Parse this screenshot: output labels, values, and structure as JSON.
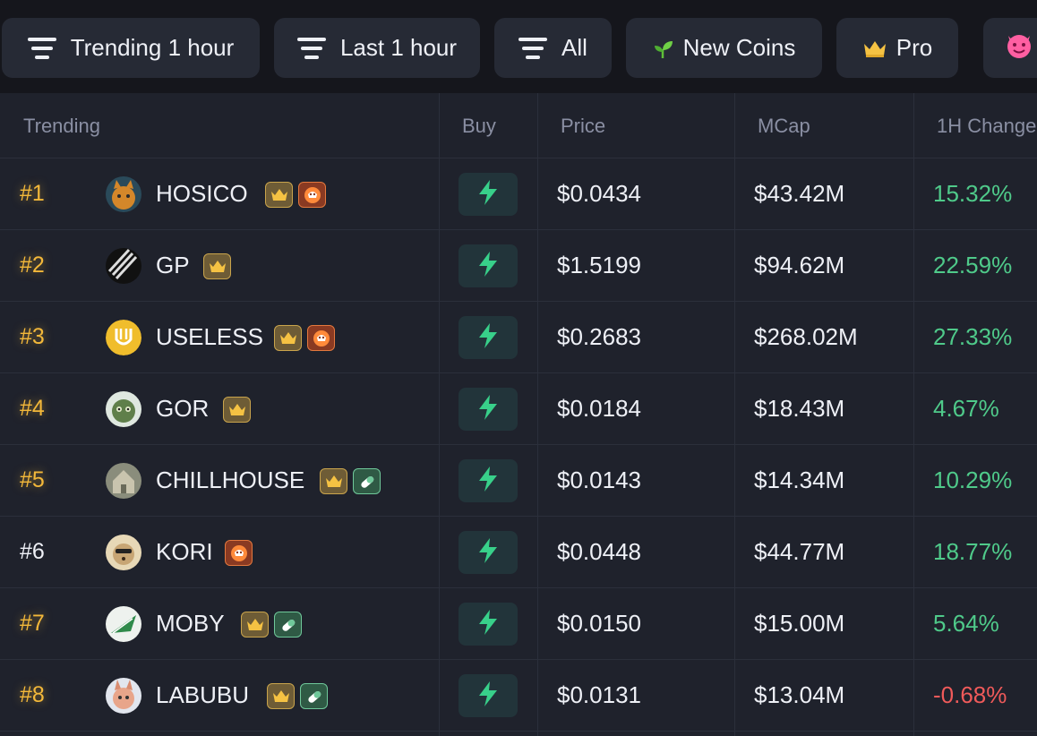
{
  "filters": {
    "trending_label": "Trending 1 hour",
    "time_label": "Last 1 hour",
    "all_label": "All",
    "new_coins_label": "New Coins",
    "pro_label": "Pro"
  },
  "table": {
    "headers": {
      "trending": "Trending",
      "buy": "Buy",
      "price": "Price",
      "mcap": "MCap",
      "change": "1H Change"
    },
    "rows": [
      {
        "rank": "#1",
        "name": "HOSICO",
        "price": "$0.0434",
        "mcap": "$43.42M",
        "change": "15.32%",
        "direction": "up",
        "badges": [
          "crown",
          "fire"
        ],
        "avatar": "orange-cat-avatar",
        "rank_style": "gold"
      },
      {
        "rank": "#2",
        "name": "GP",
        "price": "$1.5199",
        "mcap": "$94.62M",
        "change": "22.59%",
        "direction": "up",
        "badges": [
          "crown"
        ],
        "avatar": "striped-avatar",
        "rank_style": "gold"
      },
      {
        "rank": "#3",
        "name": "USELESS",
        "price": "$0.2683",
        "mcap": "$268.02M",
        "change": "27.33%",
        "direction": "up",
        "badges": [
          "crown",
          "fire"
        ],
        "avatar": "gold-coin-avatar",
        "rank_style": "gold"
      },
      {
        "rank": "#4",
        "name": "GOR",
        "price": "$0.0184",
        "mcap": "$18.43M",
        "change": "4.67%",
        "direction": "up",
        "badges": [
          "crown"
        ],
        "avatar": "goblin-avatar",
        "rank_style": "gold"
      },
      {
        "rank": "#5",
        "name": "CHILLHOUSE",
        "price": "$0.0143",
        "mcap": "$14.34M",
        "change": "10.29%",
        "direction": "up",
        "badges": [
          "crown",
          "pill"
        ],
        "avatar": "house-avatar",
        "rank_style": "gold"
      },
      {
        "rank": "#6",
        "name": "KORI",
        "price": "$0.0448",
        "mcap": "$44.77M",
        "change": "18.77%",
        "direction": "up",
        "badges": [
          "fire"
        ],
        "avatar": "dog-avatar",
        "rank_style": "plain"
      },
      {
        "rank": "#7",
        "name": "MOBY",
        "price": "$0.0150",
        "mcap": "$15.00M",
        "change": "5.64%",
        "direction": "up",
        "badges": [
          "crown",
          "pill"
        ],
        "avatar": "whale-avatar",
        "rank_style": "gold"
      },
      {
        "rank": "#8",
        "name": "LABUBU",
        "price": "$0.0131",
        "mcap": "$13.04M",
        "change": "-0.68%",
        "direction": "down",
        "badges": [
          "crown",
          "pill"
        ],
        "avatar": "labubu-avatar",
        "rank_style": "gold"
      }
    ]
  },
  "colors": {
    "up": "#4fca8a",
    "down": "#ef5a5a",
    "rank_gold": "#f3b83a",
    "buy_bolt": "#38d08a"
  }
}
